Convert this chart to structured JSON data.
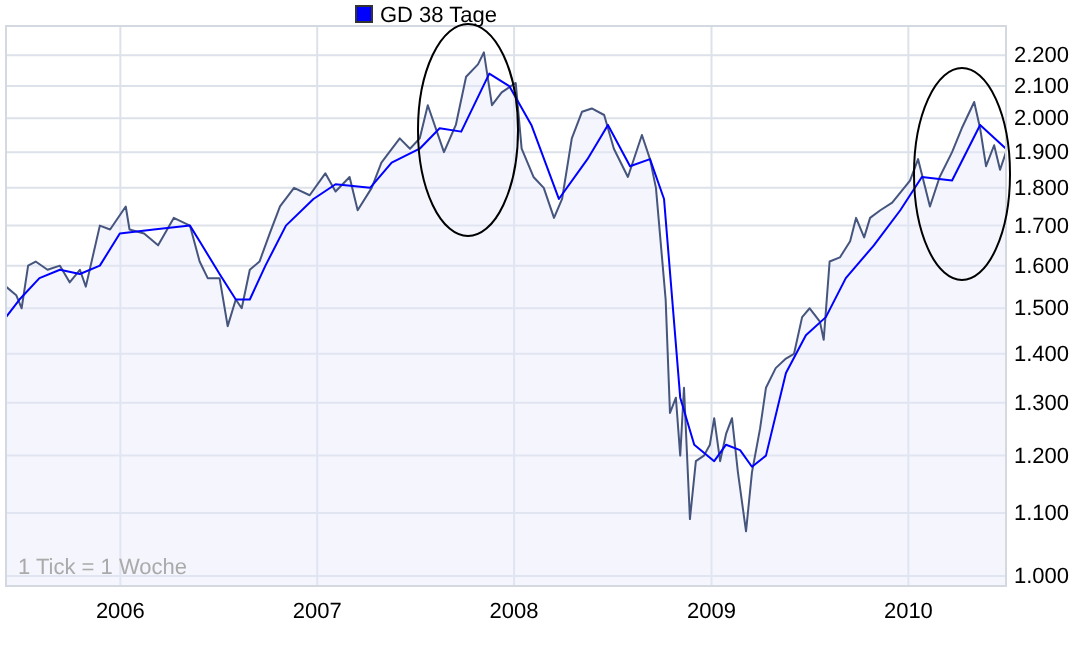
{
  "chart_data": {
    "type": "area",
    "log": "y",
    "grid": true,
    "legend": "top left",
    "line_style": "solid",
    "xlim": [
      "2005-06-03",
      "2010-07-01"
    ],
    "xticks": [
      "2006",
      "2007",
      "2008",
      "2009",
      "2010"
    ],
    "ylim": [
      985,
      2300
    ],
    "yticks": [
      {
        "value": 1000,
        "label": "1.000"
      },
      {
        "value": 1100,
        "label": "1.100"
      },
      {
        "value": 1200,
        "label": "1.200"
      },
      {
        "value": 1300,
        "label": "1.300"
      },
      {
        "value": 1400,
        "label": "1.400"
      },
      {
        "value": 1500,
        "label": "1.500"
      },
      {
        "value": 1600,
        "label": "1.600"
      },
      {
        "value": 1700,
        "label": "1.700"
      },
      {
        "value": 1800,
        "label": "1.800"
      },
      {
        "value": 1900,
        "label": "1.900"
      },
      {
        "value": 2000,
        "label": "2.000"
      },
      {
        "value": 2100,
        "label": "2.100"
      },
      {
        "value": 2200,
        "label": "2.200"
      }
    ],
    "annotations": [
      "1 Tick = 1 Woche"
    ],
    "series": [
      {
        "color": "#46557e",
        "x": [
          "2005-06-03",
          "2005-06-22",
          "2005-07-02",
          "2005-07-14",
          "2005-07-28",
          "2005-08-19",
          "2005-09-11",
          "2005-09-29",
          "2005-10-18",
          "2005-10-29",
          "2005-11-24",
          "2005-12-13",
          "2006-01-11",
          "2006-01-18",
          "2006-02-14",
          "2006-03-12",
          "2006-04-10",
          "2006-05-10",
          "2006-05-28",
          "2006-06-12",
          "2006-07-04",
          "2006-07-19",
          "2006-08-03",
          "2006-08-14",
          "2006-08-29",
          "2006-09-16",
          "2006-10-05",
          "2006-10-24",
          "2006-11-19",
          "2006-12-18",
          "2007-01-16",
          "2007-02-04",
          "2007-03-02",
          "2007-03-17",
          "2007-04-12",
          "2007-04-30",
          "2007-06-03",
          "2007-06-22",
          "2007-07-10",
          "2007-07-25",
          "2007-08-24",
          "2007-09-15",
          "2007-10-04",
          "2007-10-26",
          "2007-11-06",
          "2007-11-21",
          "2007-12-09",
          "2008-01-04",
          "2008-01-15",
          "2008-02-06",
          "2008-02-25",
          "2008-03-15",
          "2008-03-30",
          "2008-04-17",
          "2008-05-06",
          "2008-05-24",
          "2008-06-16",
          "2008-07-04",
          "2008-07-30",
          "2008-08-25",
          "2008-09-09",
          "2008-09-20",
          "2008-10-08",
          "2008-10-16",
          "2008-10-27",
          "2008-11-04",
          "2008-11-11",
          "2008-11-22",
          "2008-12-03",
          "2008-12-18",
          "2008-12-29",
          "2009-01-06",
          "2009-01-17",
          "2009-01-28",
          "2009-02-08",
          "2009-02-19",
          "2009-03-06",
          "2009-03-17",
          "2009-04-01",
          "2009-04-12",
          "2009-04-30",
          "2009-05-19",
          "2009-06-03",
          "2009-06-18",
          "2009-07-02",
          "2009-07-21",
          "2009-07-28",
          "2009-08-08",
          "2009-08-27",
          "2009-09-15",
          "2009-09-26",
          "2009-10-11",
          "2009-10-22",
          "2009-11-10",
          "2009-12-02",
          "2010-01-04",
          "2010-01-19",
          "2010-02-10",
          "2010-02-28",
          "2010-03-23",
          "2010-04-10",
          "2010-05-03",
          "2010-05-14",
          "2010-05-25",
          "2010-06-09",
          "2010-06-20",
          "2010-07-01"
        ],
        "values": [
          1550,
          1530,
          1500,
          1600,
          1610,
          1590,
          1600,
          1560,
          1590,
          1550,
          1700,
          1690,
          1750,
          1690,
          1680,
          1650,
          1720,
          1700,
          1610,
          1570,
          1570,
          1460,
          1520,
          1500,
          1590,
          1610,
          1680,
          1750,
          1800,
          1780,
          1840,
          1790,
          1830,
          1740,
          1800,
          1870,
          1940,
          1910,
          1940,
          2040,
          1900,
          1980,
          2130,
          2170,
          2210,
          2040,
          2080,
          2110,
          1910,
          1830,
          1800,
          1720,
          1770,
          1940,
          2020,
          2030,
          2010,
          1910,
          1830,
          1950,
          1880,
          1800,
          1520,
          1280,
          1310,
          1200,
          1330,
          1090,
          1190,
          1200,
          1220,
          1270,
          1190,
          1240,
          1270,
          1170,
          1070,
          1170,
          1250,
          1330,
          1370,
          1390,
          1400,
          1480,
          1500,
          1470,
          1430,
          1610,
          1620,
          1660,
          1720,
          1670,
          1720,
          1740,
          1760,
          1820,
          1880,
          1750,
          1830,
          1900,
          1970,
          2050,
          1970,
          1860,
          1920,
          1850,
          1900
        ]
      },
      {
        "type": "line",
        "name": "GD 38 Tage",
        "color": "#0000ff",
        "x": [
          "2005-06-03",
          "2005-06-28",
          "2005-08-04",
          "2005-09-11",
          "2005-10-18",
          "2005-11-24",
          "2005-12-31",
          "2006-03-04",
          "2006-05-10",
          "2006-05-28",
          "2006-07-04",
          "2006-08-03",
          "2006-08-29",
          "2006-09-27",
          "2006-11-04",
          "2006-12-25",
          "2007-02-04",
          "2007-04-09",
          "2007-05-19",
          "2007-07-10",
          "2007-08-16",
          "2007-09-25",
          "2007-11-16",
          "2007-12-23",
          "2008-02-02",
          "2008-03-24",
          "2008-05-16",
          "2008-06-23",
          "2008-08-03",
          "2008-09-09",
          "2008-10-05",
          "2008-11-04",
          "2008-11-30",
          "2009-01-06",
          "2009-01-28",
          "2009-02-23",
          "2009-03-17",
          "2009-04-12",
          "2009-05-19",
          "2009-06-25",
          "2009-08-01",
          "2009-09-07",
          "2009-10-29",
          "2009-12-17",
          "2010-01-26",
          "2010-03-23",
          "2010-05-14",
          "2010-07-01"
        ],
        "values": [
          1480,
          1520,
          1570,
          1590,
          1580,
          1600,
          1680,
          1690,
          1700,
          1660,
          1580,
          1520,
          1520,
          1600,
          1700,
          1770,
          1810,
          1800,
          1870,
          1910,
          1970,
          1960,
          2140,
          2100,
          1980,
          1770,
          1880,
          1980,
          1860,
          1880,
          1770,
          1310,
          1220,
          1190,
          1220,
          1210,
          1180,
          1200,
          1360,
          1440,
          1480,
          1570,
          1650,
          1740,
          1830,
          1820,
          1980,
          1910
        ]
      }
    ]
  }
}
